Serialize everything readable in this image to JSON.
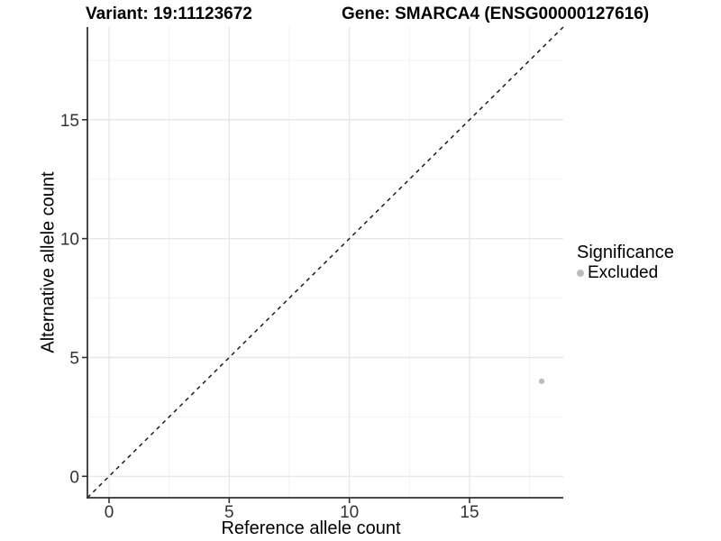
{
  "chart_data": {
    "type": "scatter",
    "title_variant": "Variant: 19:11123672",
    "title_gene": "Gene: SMARCA4 (ENSG00000127616)",
    "xlabel": "Reference allele count",
    "ylabel": "Alternative allele count",
    "xlim": [
      -0.9,
      18.9
    ],
    "ylim": [
      -0.9,
      18.9
    ],
    "x_ticks": [
      0,
      5,
      10,
      15
    ],
    "y_ticks": [
      0,
      5,
      10,
      15
    ],
    "x_minor_ticks": [
      2.5,
      7.5,
      12.5,
      17.5
    ],
    "y_minor_ticks": [
      2.5,
      7.5,
      12.5,
      17.5
    ],
    "grid": true,
    "legend": {
      "title": "Significance",
      "position": "right",
      "items": [
        {
          "label": "Excluded",
          "color": "#bcbcbc"
        }
      ]
    },
    "identity_line": {
      "style": "dashed",
      "color": "#1a1a1a",
      "from": -0.9,
      "to": 18.9
    },
    "series": [
      {
        "name": "Excluded",
        "color": "#bcbcbc",
        "points": [
          {
            "x": 18,
            "y": 4
          }
        ]
      }
    ],
    "colors": {
      "axis_line": "#333333",
      "tick_label": "#333333",
      "grid_major": "#e6e6e6",
      "grid_minor": "#f2f2f2"
    }
  }
}
